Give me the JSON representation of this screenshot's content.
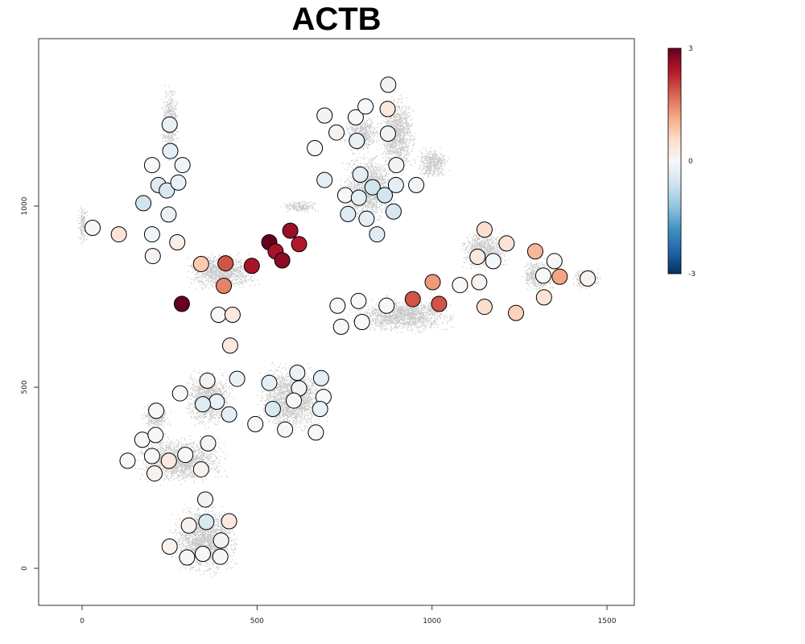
{
  "chart_data": {
    "type": "scatter",
    "title": "ACTB",
    "xlabel": "",
    "ylabel": "",
    "xlim": [
      -125,
      1580
    ],
    "ylim": [
      -100,
      1460
    ],
    "x_ticks": [
      "0",
      "500",
      "1000",
      "1500"
    ],
    "y_ticks": [
      "0",
      "500",
      "1000"
    ],
    "colorbar": {
      "min": -3,
      "max": 3,
      "ticks": [
        "3",
        "0",
        "-3"
      ],
      "colors": [
        "#053061",
        "#2166ac",
        "#4393c3",
        "#92c5de",
        "#d1e5f0",
        "#f7f7f7",
        "#fddbc7",
        "#f4a582",
        "#d6604d",
        "#b2182b",
        "#67001f"
      ]
    },
    "background_color": "#c8c8c8",
    "background_regions": [
      {
        "cx": 1,
        "cy": 950,
        "rx": 18,
        "ry": 60
      },
      {
        "cx": 250,
        "cy": 1230,
        "rx": 28,
        "ry": 120
      },
      {
        "cx": 400,
        "cy": 820,
        "rx": 120,
        "ry": 60
      },
      {
        "cx": 620,
        "cy": 1000,
        "rx": 60,
        "ry": 20
      },
      {
        "cx": 800,
        "cy": 1200,
        "rx": 60,
        "ry": 60
      },
      {
        "cx": 900,
        "cy": 1200,
        "rx": 60,
        "ry": 120
      },
      {
        "cx": 820,
        "cy": 1050,
        "rx": 90,
        "ry": 110
      },
      {
        "cx": 1000,
        "cy": 1120,
        "rx": 55,
        "ry": 50
      },
      {
        "cx": 1150,
        "cy": 880,
        "rx": 80,
        "ry": 65
      },
      {
        "cx": 1300,
        "cy": 810,
        "rx": 50,
        "ry": 55
      },
      {
        "cx": 1440,
        "cy": 800,
        "rx": 45,
        "ry": 35
      },
      {
        "cx": 920,
        "cy": 700,
        "rx": 170,
        "ry": 55
      },
      {
        "cx": 600,
        "cy": 470,
        "rx": 110,
        "ry": 110
      },
      {
        "cx": 280,
        "cy": 300,
        "rx": 150,
        "ry": 75
      },
      {
        "cx": 350,
        "cy": 80,
        "rx": 110,
        "ry": 110
      },
      {
        "cx": 210,
        "cy": 420,
        "rx": 45,
        "ry": 45
      },
      {
        "cx": 360,
        "cy": 470,
        "rx": 80,
        "ry": 90
      }
    ],
    "points": [
      {
        "x": 30,
        "y": 940,
        "v": 0.0
      },
      {
        "x": 105,
        "y": 922,
        "v": 0.4
      },
      {
        "x": 200,
        "y": 922,
        "v": -0.1
      },
      {
        "x": 202,
        "y": 862,
        "v": 0.1
      },
      {
        "x": 272,
        "y": 900,
        "v": 0.2
      },
      {
        "x": 250,
        "y": 1225,
        "v": -0.2
      },
      {
        "x": 252,
        "y": 1152,
        "v": -0.3
      },
      {
        "x": 200,
        "y": 1113,
        "v": 0.0
      },
      {
        "x": 287,
        "y": 1113,
        "v": -0.1
      },
      {
        "x": 218,
        "y": 1058,
        "v": -0.4
      },
      {
        "x": 242,
        "y": 1043,
        "v": -0.5
      },
      {
        "x": 275,
        "y": 1065,
        "v": -0.2
      },
      {
        "x": 175,
        "y": 1008,
        "v": -0.6
      },
      {
        "x": 247,
        "y": 977,
        "v": -0.2
      },
      {
        "x": 340,
        "y": 840,
        "v": 0.8
      },
      {
        "x": 410,
        "y": 842,
        "v": 1.9
      },
      {
        "x": 485,
        "y": 835,
        "v": 2.5
      },
      {
        "x": 405,
        "y": 780,
        "v": 1.5
      },
      {
        "x": 285,
        "y": 730,
        "v": 3.0
      },
      {
        "x": 390,
        "y": 700,
        "v": 0.0
      },
      {
        "x": 430,
        "y": 700,
        "v": 0.3
      },
      {
        "x": 423,
        "y": 615,
        "v": 0.3
      },
      {
        "x": 535,
        "y": 900,
        "v": 3.0
      },
      {
        "x": 595,
        "y": 932,
        "v": 2.6
      },
      {
        "x": 620,
        "y": 895,
        "v": 2.4
      },
      {
        "x": 553,
        "y": 875,
        "v": 2.5
      },
      {
        "x": 572,
        "y": 850,
        "v": 2.7
      },
      {
        "x": 693,
        "y": 1250,
        "v": -0.1
      },
      {
        "x": 727,
        "y": 1203,
        "v": 0.1
      },
      {
        "x": 665,
        "y": 1160,
        "v": 0.0
      },
      {
        "x": 782,
        "y": 1245,
        "v": 0.0
      },
      {
        "x": 810,
        "y": 1275,
        "v": 0.0
      },
      {
        "x": 875,
        "y": 1335,
        "v": -0.1
      },
      {
        "x": 873,
        "y": 1268,
        "v": 0.3
      },
      {
        "x": 874,
        "y": 1200,
        "v": -0.1
      },
      {
        "x": 785,
        "y": 1180,
        "v": -0.2
      },
      {
        "x": 693,
        "y": 1072,
        "v": -0.3
      },
      {
        "x": 795,
        "y": 1087,
        "v": -0.3
      },
      {
        "x": 830,
        "y": 1052,
        "v": -0.6
      },
      {
        "x": 898,
        "y": 1113,
        "v": -0.1
      },
      {
        "x": 752,
        "y": 1030,
        "v": 0.0
      },
      {
        "x": 791,
        "y": 1023,
        "v": -0.3
      },
      {
        "x": 865,
        "y": 1030,
        "v": -0.6
      },
      {
        "x": 897,
        "y": 1058,
        "v": -0.3
      },
      {
        "x": 955,
        "y": 1058,
        "v": -0.1
      },
      {
        "x": 760,
        "y": 978,
        "v": -0.4
      },
      {
        "x": 813,
        "y": 965,
        "v": -0.3
      },
      {
        "x": 890,
        "y": 985,
        "v": -0.5
      },
      {
        "x": 843,
        "y": 922,
        "v": -0.4
      },
      {
        "x": 730,
        "y": 725,
        "v": 0.0
      },
      {
        "x": 790,
        "y": 738,
        "v": 0.0
      },
      {
        "x": 870,
        "y": 725,
        "v": 0.0
      },
      {
        "x": 740,
        "y": 667,
        "v": 0.0
      },
      {
        "x": 800,
        "y": 680,
        "v": 0.0
      },
      {
        "x": 945,
        "y": 743,
        "v": 1.9
      },
      {
        "x": 1002,
        "y": 790,
        "v": 1.3
      },
      {
        "x": 1020,
        "y": 730,
        "v": 1.9
      },
      {
        "x": 1080,
        "y": 782,
        "v": 0.0
      },
      {
        "x": 1135,
        "y": 790,
        "v": 0.1
      },
      {
        "x": 1130,
        "y": 860,
        "v": 0.3
      },
      {
        "x": 1150,
        "y": 935,
        "v": 0.5
      },
      {
        "x": 1175,
        "y": 848,
        "v": 0.0
      },
      {
        "x": 1213,
        "y": 897,
        "v": 0.4
      },
      {
        "x": 1150,
        "y": 722,
        "v": 0.5
      },
      {
        "x": 1240,
        "y": 705,
        "v": 0.7
      },
      {
        "x": 1295,
        "y": 875,
        "v": 1.0
      },
      {
        "x": 1350,
        "y": 848,
        "v": 0.0
      },
      {
        "x": 1318,
        "y": 808,
        "v": 0.0
      },
      {
        "x": 1365,
        "y": 805,
        "v": 1.2
      },
      {
        "x": 1320,
        "y": 748,
        "v": 0.4
      },
      {
        "x": 1445,
        "y": 800,
        "v": 0.1
      },
      {
        "x": 443,
        "y": 523,
        "v": -0.2
      },
      {
        "x": 358,
        "y": 518,
        "v": 0.1
      },
      {
        "x": 280,
        "y": 483,
        "v": 0.0
      },
      {
        "x": 385,
        "y": 460,
        "v": -0.2
      },
      {
        "x": 345,
        "y": 453,
        "v": -0.4
      },
      {
        "x": 420,
        "y": 425,
        "v": -0.3
      },
      {
        "x": 535,
        "y": 512,
        "v": -0.3
      },
      {
        "x": 615,
        "y": 540,
        "v": -0.2
      },
      {
        "x": 683,
        "y": 525,
        "v": -0.3
      },
      {
        "x": 620,
        "y": 497,
        "v": -0.1
      },
      {
        "x": 690,
        "y": 473,
        "v": 0.0
      },
      {
        "x": 605,
        "y": 463,
        "v": 0.0
      },
      {
        "x": 545,
        "y": 440,
        "v": -0.5
      },
      {
        "x": 680,
        "y": 440,
        "v": -0.2
      },
      {
        "x": 495,
        "y": 398,
        "v": 0.0
      },
      {
        "x": 580,
        "y": 383,
        "v": 0.0
      },
      {
        "x": 668,
        "y": 375,
        "v": 0.0
      },
      {
        "x": 212,
        "y": 435,
        "v": 0.0
      },
      {
        "x": 172,
        "y": 355,
        "v": 0.0
      },
      {
        "x": 210,
        "y": 368,
        "v": 0.0
      },
      {
        "x": 360,
        "y": 345,
        "v": -0.1
      },
      {
        "x": 130,
        "y": 297,
        "v": 0.0
      },
      {
        "x": 200,
        "y": 310,
        "v": 0.0
      },
      {
        "x": 248,
        "y": 297,
        "v": 0.3
      },
      {
        "x": 295,
        "y": 313,
        "v": 0.0
      },
      {
        "x": 207,
        "y": 262,
        "v": 0.1
      },
      {
        "x": 340,
        "y": 273,
        "v": 0.1
      },
      {
        "x": 352,
        "y": 190,
        "v": -0.1
      },
      {
        "x": 250,
        "y": 60,
        "v": 0.1
      },
      {
        "x": 305,
        "y": 118,
        "v": 0.1
      },
      {
        "x": 355,
        "y": 128,
        "v": -0.5
      },
      {
        "x": 420,
        "y": 130,
        "v": 0.3
      },
      {
        "x": 397,
        "y": 77,
        "v": -0.1
      },
      {
        "x": 300,
        "y": 30,
        "v": 0.0
      },
      {
        "x": 345,
        "y": 40,
        "v": 0.0
      },
      {
        "x": 395,
        "y": 32,
        "v": 0.0
      }
    ]
  }
}
